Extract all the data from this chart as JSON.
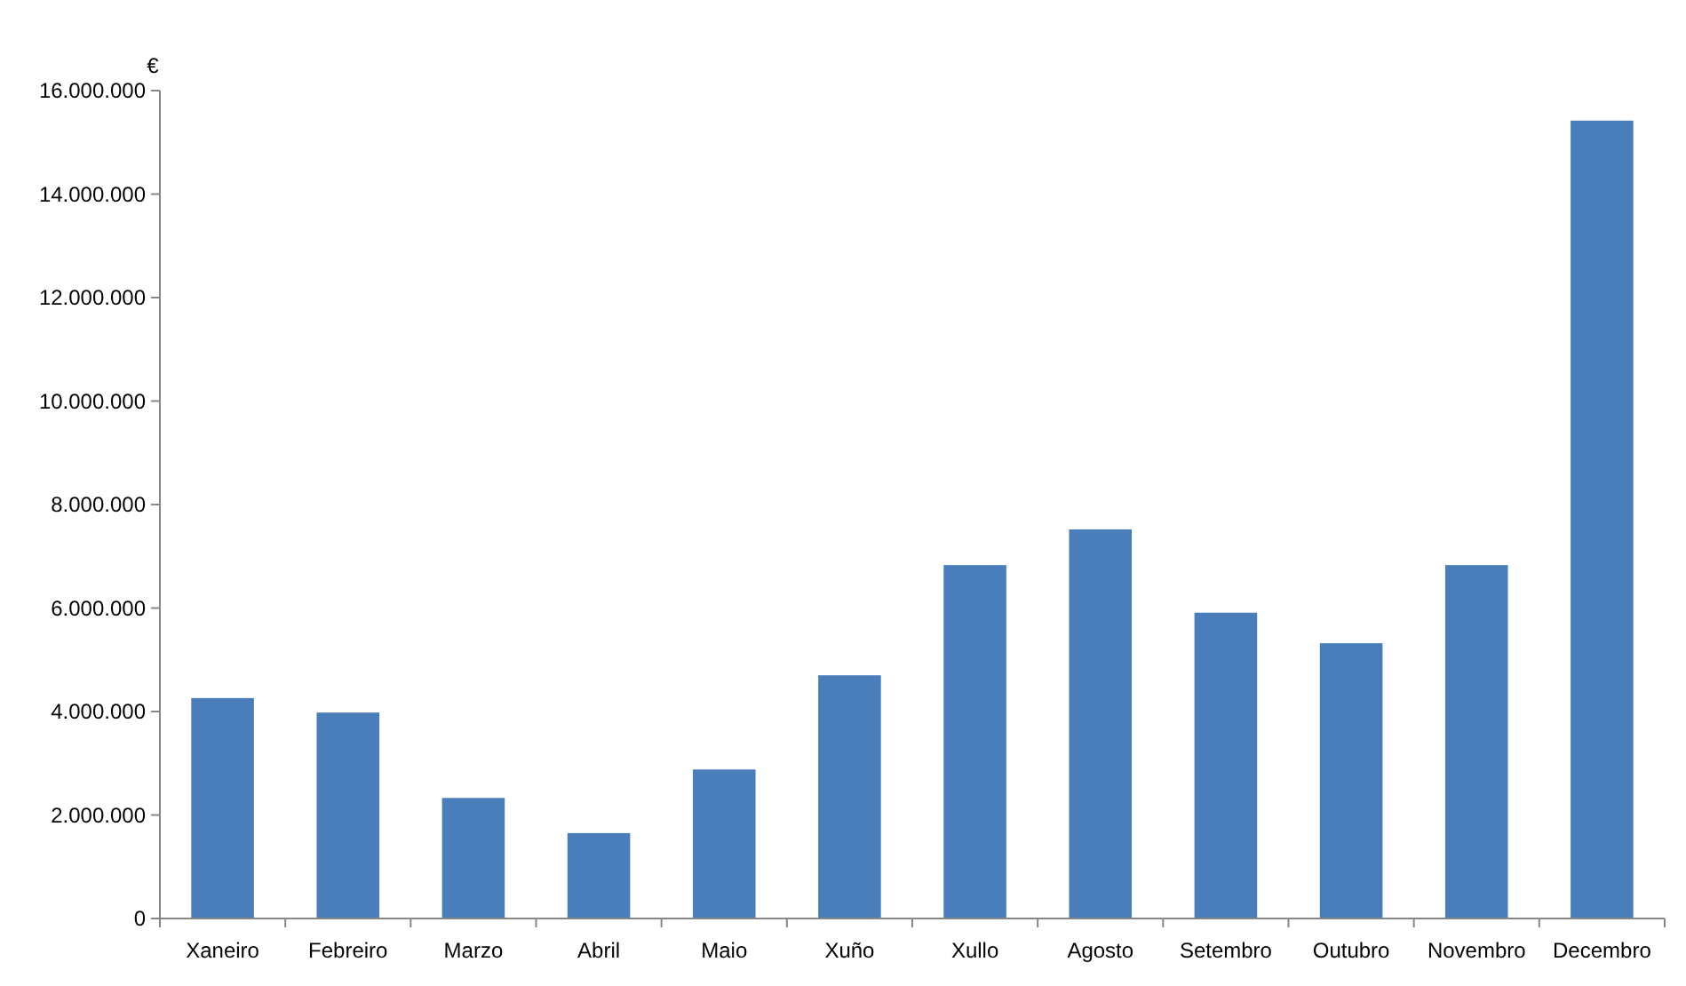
{
  "chart_data": {
    "type": "bar",
    "ylabel": "€",
    "categories": [
      "Xaneiro",
      "Febreiro",
      "Marzo",
      "Abril",
      "Maio",
      "Xuño",
      "Xullo",
      "Agosto",
      "Setembro",
      "Outubro",
      "Novembro",
      "Decembro"
    ],
    "values": [
      4260000,
      3980000,
      2330000,
      1650000,
      2880000,
      4700000,
      6830000,
      7520000,
      5910000,
      5320000,
      6830000,
      15420000
    ],
    "color": "#4a7ebb",
    "ylim": [
      0,
      16000000
    ],
    "yticks": [
      {
        "value": 0,
        "label": "0"
      },
      {
        "value": 2000000,
        "label": "2.000.000"
      },
      {
        "value": 4000000,
        "label": "4.000.000"
      },
      {
        "value": 6000000,
        "label": "6.000.000"
      },
      {
        "value": 8000000,
        "label": "8.000.000"
      },
      {
        "value": 10000000,
        "label": "10.000.000"
      },
      {
        "value": 12000000,
        "label": "12.000.000"
      },
      {
        "value": 14000000,
        "label": "14.000.000"
      },
      {
        "value": 16000000,
        "label": "16.000.000"
      }
    ],
    "grid": false
  }
}
